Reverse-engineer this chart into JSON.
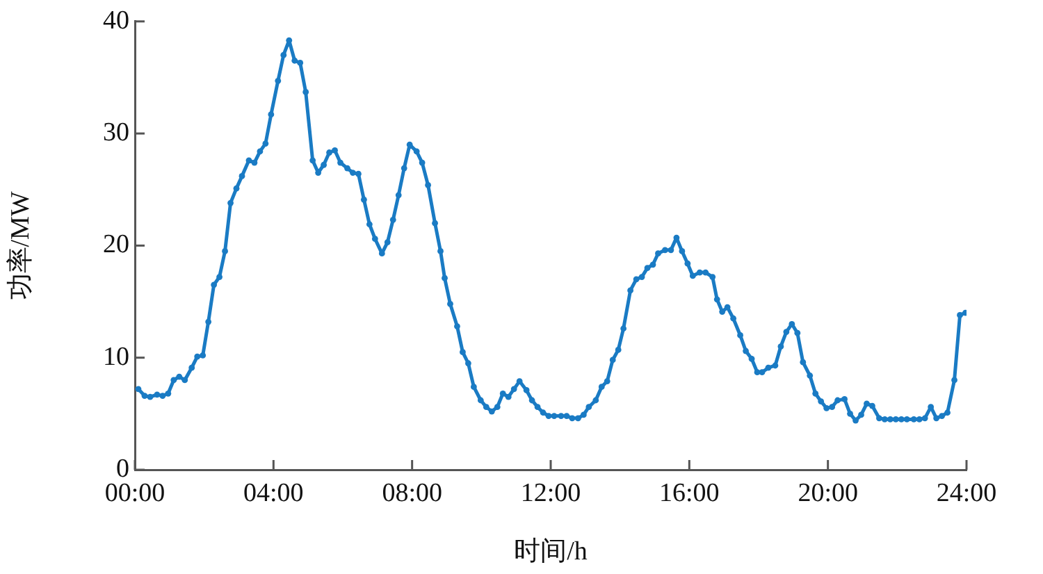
{
  "chart_data": {
    "type": "line",
    "xlabel": "时间/h",
    "ylabel": "功率/MW",
    "xlim": [
      0,
      24
    ],
    "xticks": [
      {
        "value": 0,
        "label": "00:00"
      },
      {
        "value": 4,
        "label": "04:00"
      },
      {
        "value": 8,
        "label": "08:00"
      },
      {
        "value": 12,
        "label": "12:00"
      },
      {
        "value": 16,
        "label": "16:00"
      },
      {
        "value": 20,
        "label": "20:00"
      },
      {
        "value": 24,
        "label": "24:00"
      }
    ],
    "ylim": [
      0,
      40
    ],
    "yticks": [
      0,
      10,
      20,
      30,
      40
    ],
    "grid": false,
    "legend": false,
    "marker": "circle",
    "line_style": "solid",
    "series": [
      {
        "color": "#1a7bc4",
        "x": [
          0.1,
          0.28,
          0.44,
          0.64,
          0.8,
          0.96,
          1.12,
          1.28,
          1.44,
          1.64,
          1.8,
          1.96,
          2.12,
          2.28,
          2.44,
          2.6,
          2.76,
          2.93,
          3.09,
          3.29,
          3.45,
          3.61,
          3.77,
          3.93,
          4.13,
          4.29,
          4.45,
          4.61,
          4.77,
          4.93,
          5.13,
          5.29,
          5.45,
          5.61,
          5.77,
          5.93,
          6.13,
          6.29,
          6.45,
          6.61,
          6.77,
          6.93,
          7.13,
          7.29,
          7.45,
          7.61,
          7.77,
          7.93,
          8.13,
          8.29,
          8.46,
          8.66,
          8.82,
          8.94,
          9.1,
          9.3,
          9.46,
          9.62,
          9.78,
          9.98,
          10.14,
          10.3,
          10.46,
          10.62,
          10.78,
          10.94,
          11.1,
          11.3,
          11.46,
          11.62,
          11.78,
          11.94,
          12.1,
          12.3,
          12.46,
          12.62,
          12.79,
          12.95,
          13.1,
          13.3,
          13.47,
          13.63,
          13.79,
          13.95,
          14.1,
          14.3,
          14.47,
          14.63,
          14.79,
          14.95,
          15.1,
          15.3,
          15.47,
          15.63,
          15.79,
          15.95,
          16.1,
          16.3,
          16.47,
          16.67,
          16.8,
          16.95,
          17.1,
          17.27,
          17.47,
          17.63,
          17.8,
          17.96,
          18.1,
          18.28,
          18.48,
          18.64,
          18.8,
          18.96,
          19.12,
          19.28,
          19.48,
          19.64,
          19.8,
          19.96,
          20.12,
          20.28,
          20.48,
          20.64,
          20.8,
          20.96,
          21.12,
          21.28,
          21.48,
          21.64,
          21.8,
          21.96,
          22.12,
          22.28,
          22.48,
          22.64,
          22.8,
          22.97,
          23.13,
          23.29,
          23.45,
          23.65,
          23.81,
          23.97
        ],
        "values": [
          7.2,
          6.6,
          6.5,
          6.7,
          6.6,
          6.8,
          8.0,
          8.3,
          8.0,
          9.1,
          10.1,
          10.2,
          13.2,
          16.5,
          17.2,
          19.5,
          23.8,
          25.1,
          26.2,
          27.6,
          27.4,
          28.4,
          29.1,
          31.7,
          34.7,
          37.0,
          38.3,
          36.5,
          36.3,
          33.7,
          27.6,
          26.5,
          27.2,
          28.3,
          28.5,
          27.4,
          26.9,
          26.5,
          26.4,
          24.1,
          21.9,
          20.6,
          19.3,
          20.3,
          22.3,
          24.5,
          26.9,
          29.0,
          28.4,
          27.4,
          25.4,
          22.0,
          19.5,
          17.1,
          14.8,
          12.8,
          10.5,
          9.5,
          7.4,
          6.2,
          5.6,
          5.2,
          5.6,
          6.8,
          6.5,
          7.2,
          7.9,
          7.1,
          6.2,
          5.6,
          5.1,
          4.8,
          4.8,
          4.8,
          4.8,
          4.6,
          4.6,
          4.9,
          5.6,
          6.2,
          7.4,
          7.9,
          9.8,
          10.7,
          12.6,
          16.0,
          17.0,
          17.2,
          18.0,
          18.3,
          19.3,
          19.6,
          19.6,
          20.7,
          19.5,
          18.4,
          17.3,
          17.6,
          17.6,
          17.2,
          15.2,
          14.1,
          14.5,
          13.5,
          12.0,
          10.6,
          9.9,
          8.7,
          8.7,
          9.1,
          9.3,
          11.0,
          12.3,
          13.0,
          12.2,
          9.6,
          8.4,
          6.8,
          6.1,
          5.5,
          5.6,
          6.2,
          6.3,
          5.0,
          4.4,
          4.9,
          5.9,
          5.7,
          4.6,
          4.5,
          4.5,
          4.5,
          4.5,
          4.5,
          4.5,
          4.5,
          4.6,
          5.6,
          4.6,
          4.8,
          5.1,
          8.0,
          13.8,
          14.0
        ]
      }
    ]
  }
}
